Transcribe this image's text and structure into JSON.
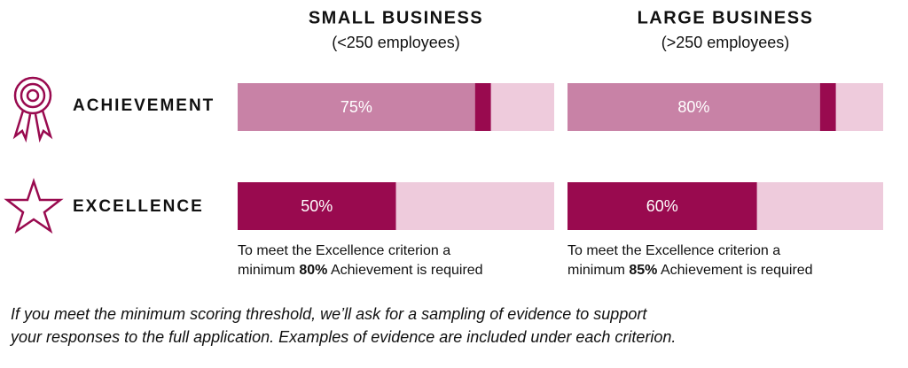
{
  "chart_data": {
    "type": "bar",
    "orientation": "horizontal",
    "categories": [
      "ACHIEVEMENT",
      "EXCELLENCE"
    ],
    "xlim": [
      0,
      100
    ],
    "row_colors": [
      "#c882a6",
      "#990a4f"
    ],
    "marker_color": "#990a4f",
    "track_color": "#eecbdc",
    "series": [
      {
        "name": "SMALL BUSINESS",
        "subtitle": "(<250 employees)",
        "values": [
          75,
          50
        ],
        "value_labels": [
          "75%",
          "50%"
        ],
        "threshold": 80,
        "threshold_label": "80%",
        "note_line1": "To meet the Excellence criterion a",
        "note_before": "minimum",
        "note_after": "Achievement is required"
      },
      {
        "name": "LARGE BUSINESS",
        "subtitle": "(>250 employees)",
        "values": [
          80,
          60
        ],
        "value_labels": [
          "80%",
          "60%"
        ],
        "threshold": 85,
        "threshold_label": "85%",
        "note_line1": "To meet the Excellence criterion a",
        "note_before": "minimum",
        "note_after": "Achievement is required"
      }
    ],
    "footnote": [
      "If you meet the minimum scoring threshold, we’ll ask for a sampling of evidence to support",
      "your responses to the full application. Examples of evidence are included under each criterion."
    ]
  }
}
